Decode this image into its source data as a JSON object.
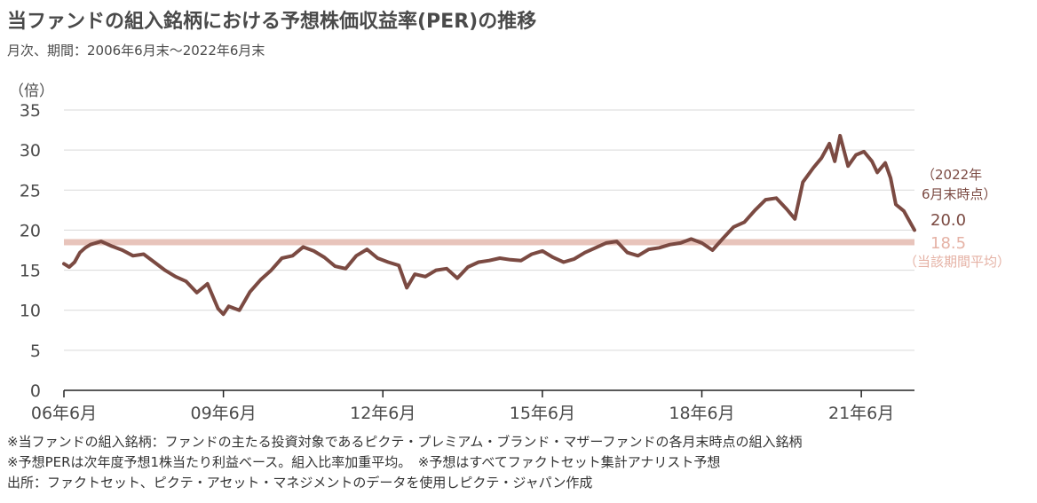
{
  "header": {
    "title": "当ファンドの組入銘柄における予想株価収益率(PER)の推移",
    "subtitle": "月次、期間：2006年6月末～2022年6月末"
  },
  "colors": {
    "series": "#7b4a42",
    "average": "#e8c4bb",
    "average_label": "#e5b2a5",
    "axis": "#4a4a4a",
    "grid": "#d9d9d9"
  },
  "chart_data": {
    "type": "line",
    "title": "当ファンドの組入銘柄における予想株価収益率(PER)の推移",
    "ylabel": "（倍）",
    "ylim": [
      0,
      35
    ],
    "yticks": [
      0,
      5,
      10,
      15,
      20,
      25,
      30,
      35
    ],
    "xlim": [
      2006.5,
      2022.5
    ],
    "xticks": [
      {
        "x": 2006.5,
        "label": "06年6月"
      },
      {
        "x": 2009.5,
        "label": "09年6月"
      },
      {
        "x": 2012.5,
        "label": "12年6月"
      },
      {
        "x": 2015.5,
        "label": "15年6月"
      },
      {
        "x": 2018.5,
        "label": "18年6月"
      },
      {
        "x": 2021.5,
        "label": "21年6月"
      }
    ],
    "grid": true,
    "series": [
      {
        "values": [
          [
            2006.5,
            15.8
          ],
          [
            2006.6,
            15.4
          ],
          [
            2006.7,
            16.0
          ],
          [
            2006.8,
            17.2
          ],
          [
            2006.9,
            17.8
          ],
          [
            2007.0,
            18.2
          ],
          [
            2007.2,
            18.6
          ],
          [
            2007.4,
            18.0
          ],
          [
            2007.6,
            17.5
          ],
          [
            2007.8,
            16.8
          ],
          [
            2008.0,
            17.0
          ],
          [
            2008.2,
            16.0
          ],
          [
            2008.4,
            15.0
          ],
          [
            2008.6,
            14.2
          ],
          [
            2008.8,
            13.6
          ],
          [
            2009.0,
            12.2
          ],
          [
            2009.2,
            13.3
          ],
          [
            2009.4,
            10.2
          ],
          [
            2009.5,
            9.5
          ],
          [
            2009.6,
            10.5
          ],
          [
            2009.8,
            10.0
          ],
          [
            2010.0,
            12.3
          ],
          [
            2010.2,
            13.8
          ],
          [
            2010.4,
            15.0
          ],
          [
            2010.6,
            16.5
          ],
          [
            2010.8,
            16.8
          ],
          [
            2011.0,
            17.9
          ],
          [
            2011.2,
            17.4
          ],
          [
            2011.4,
            16.6
          ],
          [
            2011.6,
            15.5
          ],
          [
            2011.8,
            15.2
          ],
          [
            2012.0,
            16.8
          ],
          [
            2012.2,
            17.6
          ],
          [
            2012.4,
            16.5
          ],
          [
            2012.6,
            16.0
          ],
          [
            2012.8,
            15.6
          ],
          [
            2012.95,
            12.8
          ],
          [
            2013.1,
            14.5
          ],
          [
            2013.3,
            14.2
          ],
          [
            2013.5,
            15.0
          ],
          [
            2013.7,
            15.2
          ],
          [
            2013.9,
            14.0
          ],
          [
            2014.1,
            15.4
          ],
          [
            2014.3,
            16.0
          ],
          [
            2014.5,
            16.2
          ],
          [
            2014.7,
            16.5
          ],
          [
            2014.9,
            16.3
          ],
          [
            2015.1,
            16.2
          ],
          [
            2015.3,
            17.0
          ],
          [
            2015.5,
            17.4
          ],
          [
            2015.7,
            16.6
          ],
          [
            2015.9,
            16.0
          ],
          [
            2016.1,
            16.4
          ],
          [
            2016.3,
            17.2
          ],
          [
            2016.5,
            17.8
          ],
          [
            2016.7,
            18.4
          ],
          [
            2016.9,
            18.6
          ],
          [
            2017.1,
            17.2
          ],
          [
            2017.3,
            16.8
          ],
          [
            2017.5,
            17.6
          ],
          [
            2017.7,
            17.8
          ],
          [
            2017.9,
            18.2
          ],
          [
            2018.1,
            18.4
          ],
          [
            2018.3,
            18.9
          ],
          [
            2018.5,
            18.4
          ],
          [
            2018.7,
            17.5
          ],
          [
            2018.9,
            19.0
          ],
          [
            2019.1,
            20.4
          ],
          [
            2019.3,
            21.0
          ],
          [
            2019.5,
            22.5
          ],
          [
            2019.7,
            23.8
          ],
          [
            2019.9,
            24.0
          ],
          [
            2020.1,
            22.6
          ],
          [
            2020.25,
            21.4
          ],
          [
            2020.4,
            26.0
          ],
          [
            2020.6,
            27.8
          ],
          [
            2020.75,
            29.0
          ],
          [
            2020.9,
            30.8
          ],
          [
            2021.0,
            28.6
          ],
          [
            2021.1,
            31.8
          ],
          [
            2021.25,
            28.0
          ],
          [
            2021.4,
            29.4
          ],
          [
            2021.55,
            29.8
          ],
          [
            2021.7,
            28.6
          ],
          [
            2021.8,
            27.2
          ],
          [
            2021.95,
            28.4
          ],
          [
            2022.05,
            26.5
          ],
          [
            2022.15,
            23.2
          ],
          [
            2022.3,
            22.4
          ],
          [
            2022.5,
            20.0
          ]
        ]
      }
    ],
    "average": {
      "value": 18.5,
      "label": "18.5",
      "note": "（当該期間平均）"
    },
    "end_label": {
      "value": "20.0",
      "note_line1": "（2022年",
      "note_line2": "6月末時点）"
    }
  },
  "notes": [
    "※当ファンドの組入銘柄：ファンドの主たる投資対象であるピクテ・プレミアム・ブランド・マザーファンドの各月末時点の組入銘柄",
    "※予想PERは次年度予想1株当たり利益ベース。組入比率加重平均。　※予想はすべてファクトセット集計アナリスト予想",
    "出所：ファクトセット、ピクテ・アセット・マネジメントのデータを使用しピクテ・ジャパン作成"
  ]
}
